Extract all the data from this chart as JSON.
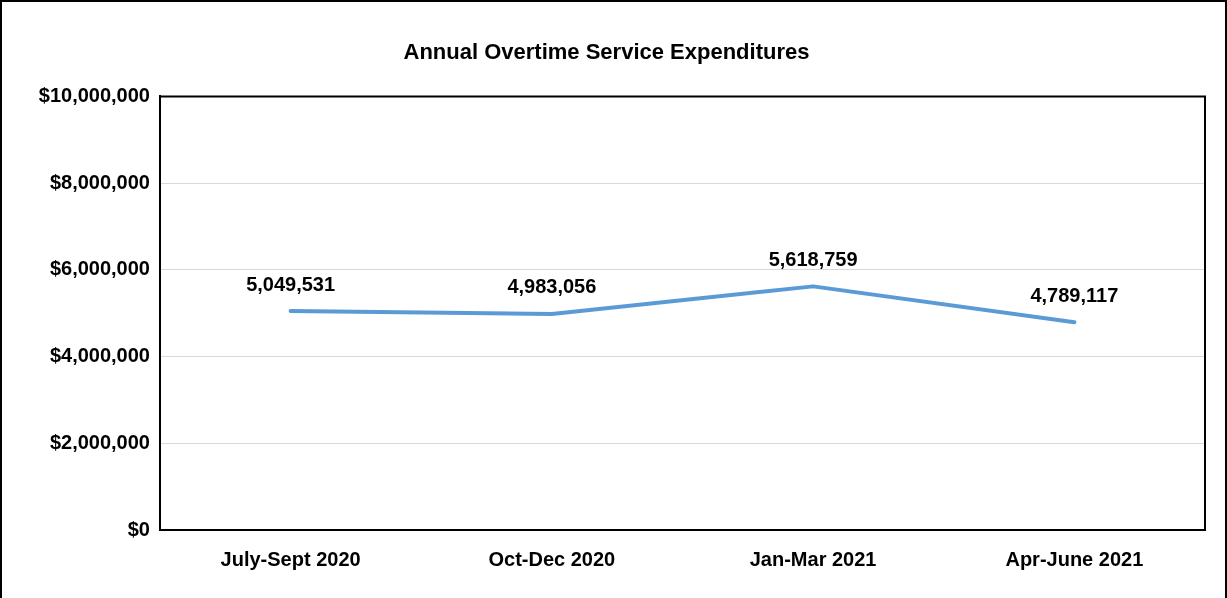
{
  "chart_data": {
    "type": "line",
    "title": "Annual Overtime Service Expenditures",
    "categories": [
      "July-Sept 2020",
      "Oct-Dec 2020",
      "Jan-Mar 2021",
      "Apr-June 2021"
    ],
    "series": [
      {
        "color": "#5b9bd5",
        "values": [
          5049531,
          4983056,
          5618759,
          4789117
        ],
        "value_labels": [
          "5,049,531",
          "4,983,056",
          "5,618,759",
          "4,789,117"
        ]
      }
    ],
    "ylim": [
      0,
      10000000
    ],
    "yticks": [
      {
        "value": 0,
        "label": "$0"
      },
      {
        "value": 2000000,
        "label": "$2,000,000"
      },
      {
        "value": 4000000,
        "label": "$4,000,000"
      },
      {
        "value": 6000000,
        "label": "$6,000,000"
      },
      {
        "value": 8000000,
        "label": "$8,000,000"
      },
      {
        "value": 10000000,
        "label": "$10,000,000"
      }
    ],
    "grid": "y",
    "line_style": "solid"
  }
}
